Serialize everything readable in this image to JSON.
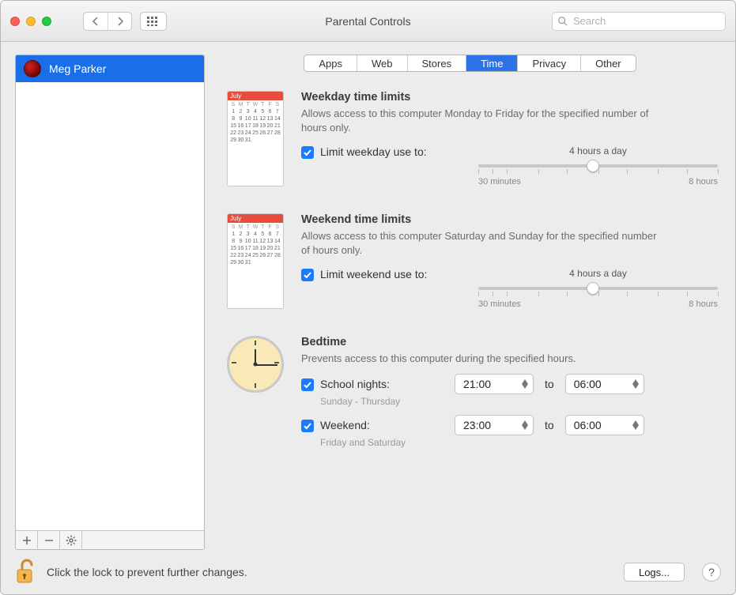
{
  "window": {
    "title": "Parental Controls",
    "search_placeholder": "Search"
  },
  "sidebar": {
    "users": [
      {
        "name": "Meg Parker",
        "selected": true
      }
    ]
  },
  "tabs": {
    "items": [
      "Apps",
      "Web",
      "Stores",
      "Time",
      "Privacy",
      "Other"
    ],
    "active_index": 3
  },
  "time": {
    "weekday": {
      "title": "Weekday time limits",
      "desc": "Allows access to this computer Monday to Friday for the specified number of hours only.",
      "limit_checked": true,
      "limit_label": "Limit weekday use to:",
      "slider_caption": "4 hours a day",
      "slider_min_label": "30 minutes",
      "slider_max_label": "8 hours",
      "slider_pos_pct": 48
    },
    "weekend": {
      "title": "Weekend time limits",
      "desc": "Allows access to this computer Saturday and Sunday for the specified number of hours only.",
      "limit_checked": true,
      "limit_label": "Limit weekend use to:",
      "slider_caption": "4 hours a day",
      "slider_min_label": "30 minutes",
      "slider_max_label": "8 hours",
      "slider_pos_pct": 48
    },
    "bedtime": {
      "title": "Bedtime",
      "desc": "Prevents access to this computer during the specified hours.",
      "school": {
        "checked": true,
        "label": "School nights:",
        "subtitle": "Sunday - Thursday",
        "from": "21:00",
        "to": "06:00"
      },
      "weekend": {
        "checked": true,
        "label": "Weekend:",
        "subtitle": "Friday and Saturday",
        "from": "23:00",
        "to": "06:00"
      },
      "to_word": "to"
    },
    "calendar_month": "July"
  },
  "footer": {
    "lock_text": "Click the lock to prevent further changes.",
    "logs_label": "Logs..."
  }
}
